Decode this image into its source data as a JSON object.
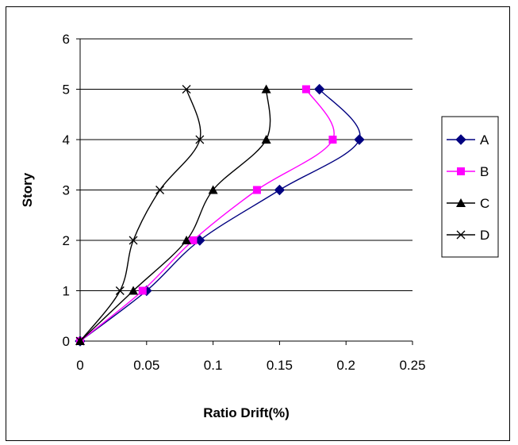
{
  "chart_data": {
    "type": "line",
    "title": "",
    "xlabel": "Ratio Drift(%)",
    "ylabel": "Story",
    "xlim": [
      0,
      0.25
    ],
    "ylim": [
      0,
      6
    ],
    "xticks": [
      "0",
      "0.05",
      "0.1",
      "0.15",
      "0.2",
      "0.25"
    ],
    "yticks": [
      "0",
      "1",
      "2",
      "3",
      "4",
      "5",
      "6"
    ],
    "grid": "horizontal",
    "legend_position": "right",
    "series": [
      {
        "name": "A",
        "color": "#000080",
        "marker": "diamond",
        "x": [
          0,
          0.05,
          0.09,
          0.15,
          0.21,
          0.18
        ],
        "y": [
          0,
          1,
          2,
          3,
          4,
          5
        ]
      },
      {
        "name": "B",
        "color": "#ff00ff",
        "marker": "square",
        "x": [
          0,
          0.047,
          0.085,
          0.133,
          0.19,
          0.17
        ],
        "y": [
          0,
          1,
          2,
          3,
          4,
          5
        ]
      },
      {
        "name": "C",
        "color": "#000000",
        "marker": "triangle",
        "x": [
          0,
          0.04,
          0.08,
          0.1,
          0.14,
          0.14
        ],
        "y": [
          0,
          1,
          2,
          3,
          4,
          5
        ]
      },
      {
        "name": "D",
        "color": "#000000",
        "marker": "x",
        "x": [
          0,
          0.03,
          0.04,
          0.06,
          0.09,
          0.08
        ],
        "y": [
          0,
          1,
          2,
          3,
          4,
          5
        ]
      }
    ]
  }
}
